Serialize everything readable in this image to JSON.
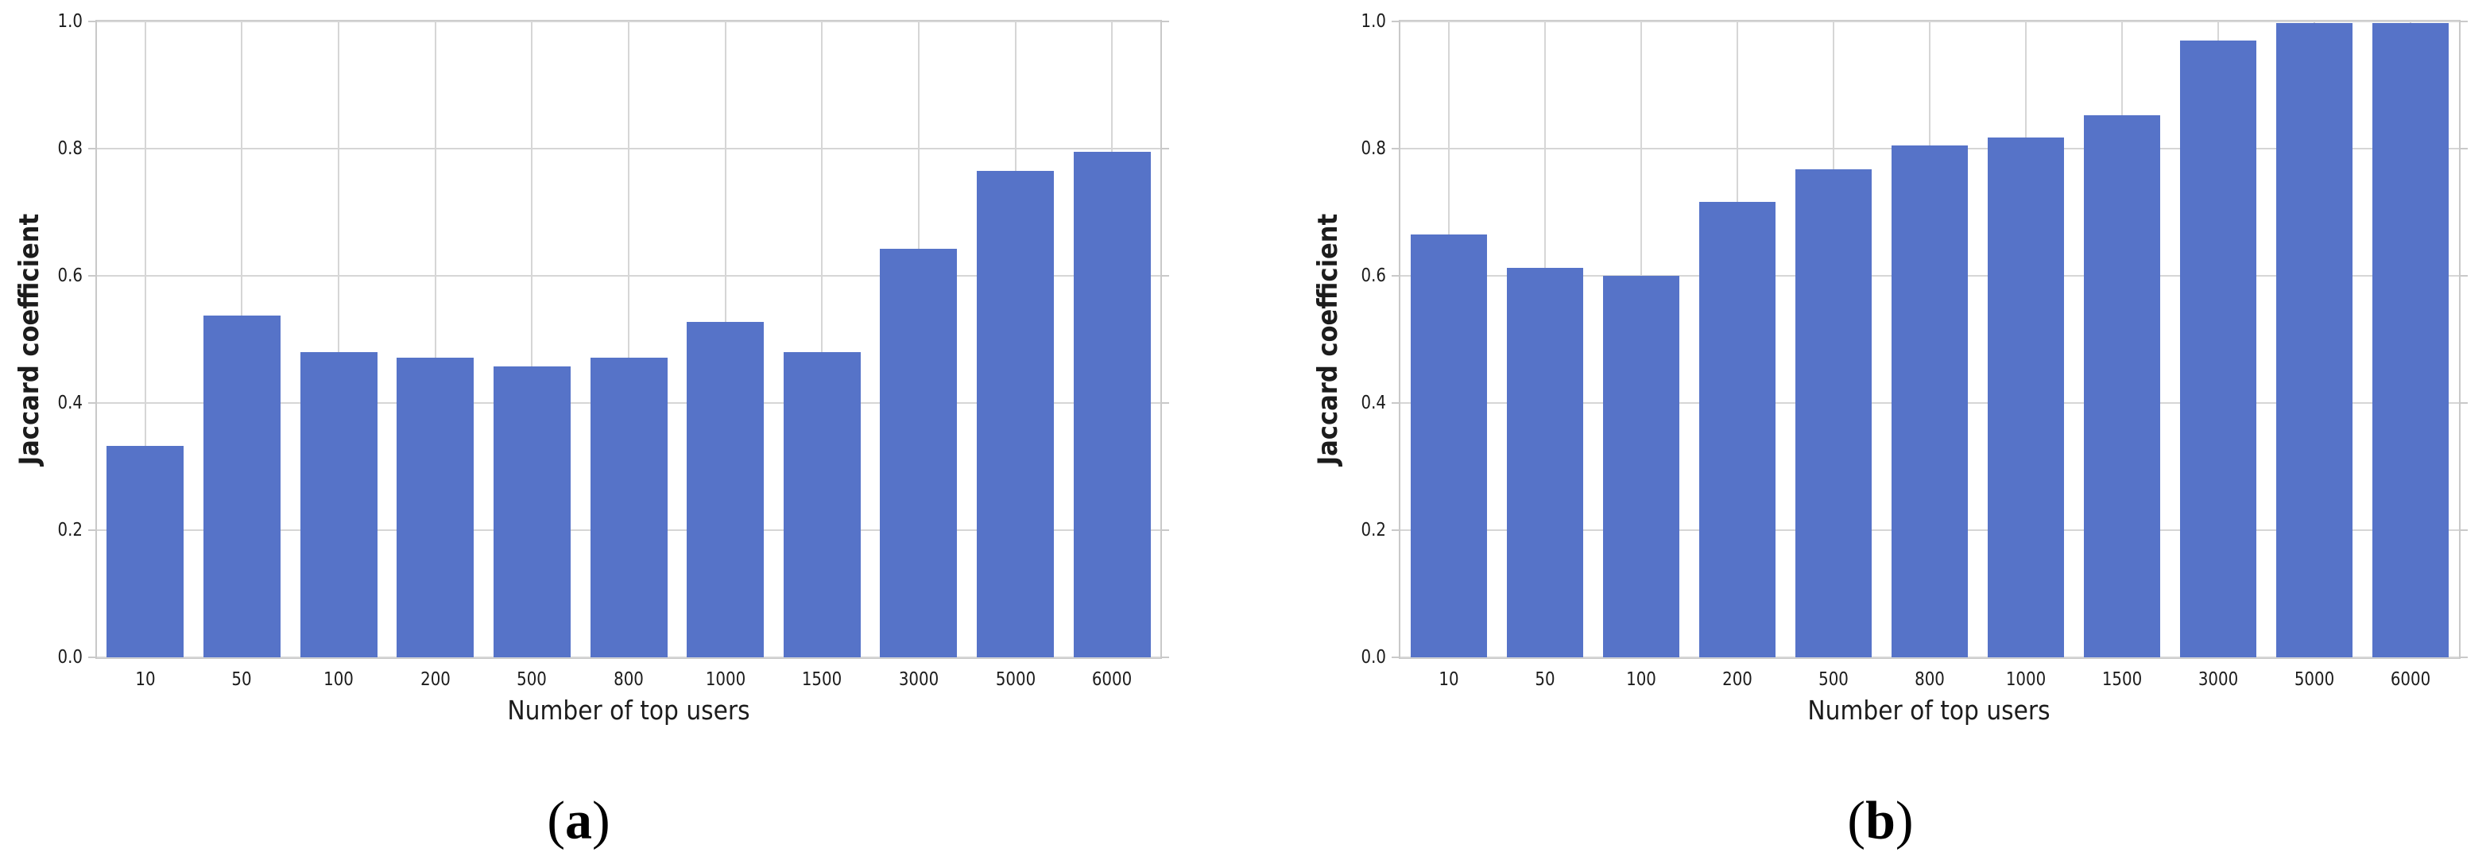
{
  "figure": {
    "background": "#ffffff",
    "bar_color": "#5673c8",
    "grid_color": "#d6d6d6",
    "spine_color": "#c9c9c9",
    "text_color": "#1c1c1c"
  },
  "chart_data": [
    {
      "id": "a",
      "type": "bar",
      "title": "",
      "categories": [
        "10",
        "50",
        "100",
        "200",
        "500",
        "800",
        "1000",
        "1500",
        "3000",
        "5000",
        "6000"
      ],
      "values": [
        0.333,
        0.538,
        0.48,
        0.471,
        0.457,
        0.471,
        0.527,
        0.48,
        0.642,
        0.765,
        0.795
      ],
      "xlabel": "Number of top users",
      "ylabel": "Jaccard coefficient",
      "ylim": [
        0,
        1
      ],
      "yticks": [
        "0.0",
        "0.2",
        "0.4",
        "0.6",
        "0.8",
        "1.0"
      ],
      "grid": true,
      "legend": "none",
      "caption": {
        "open": "(",
        "letter": "a",
        "close": ")"
      }
    },
    {
      "id": "b",
      "type": "bar",
      "title": "",
      "categories": [
        "10",
        "50",
        "100",
        "200",
        "500",
        "800",
        "1000",
        "1500",
        "3000",
        "5000",
        "6000"
      ],
      "values": [
        0.665,
        0.612,
        0.6,
        0.716,
        0.768,
        0.805,
        0.818,
        0.852,
        0.97,
        0.998,
        0.998
      ],
      "xlabel": "Number of top users",
      "ylabel": "Jaccard coefficient",
      "ylim": [
        0,
        1
      ],
      "yticks": [
        "0.0",
        "0.2",
        "0.4",
        "0.6",
        "0.8",
        "1.0"
      ],
      "grid": true,
      "legend": "none",
      "caption": {
        "open": "(",
        "letter": "b",
        "close": ")"
      }
    }
  ]
}
